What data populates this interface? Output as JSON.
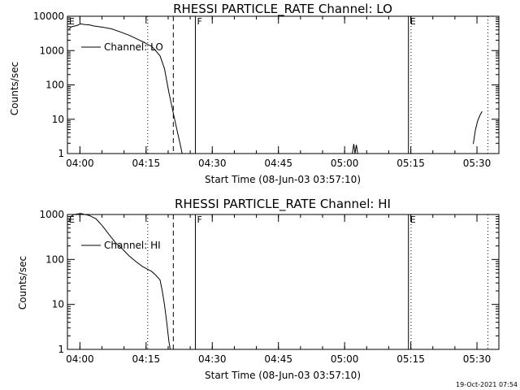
{
  "chart_data": [
    {
      "type": "line",
      "title": "RHESSI PARTICLE_RATE Channel: LO",
      "xlabel": "Start Time (08-Jun-03 03:57:10)",
      "ylabel": "Counts/sec",
      "yscale": "log",
      "xlim_minutes": [
        0,
        97.8
      ],
      "ylim": [
        1,
        10000
      ],
      "x_ticks": [
        {
          "label": "04:00",
          "minute": 2.833
        },
        {
          "label": "04:15",
          "minute": 17.833
        },
        {
          "label": "04:30",
          "minute": 32.833
        },
        {
          "label": "04:45",
          "minute": 47.833
        },
        {
          "label": "05:00",
          "minute": 62.833
        },
        {
          "label": "05:15",
          "minute": 77.833
        },
        {
          "label": "05:30",
          "minute": 92.833
        }
      ],
      "y_ticks": [
        {
          "label": "1",
          "value": 1
        },
        {
          "label": "10",
          "value": 10
        },
        {
          "label": "100",
          "value": 100
        },
        {
          "label": "1000",
          "value": 1000
        },
        {
          "label": "10000",
          "value": 10000
        }
      ],
      "legend": {
        "label": "Channel: LO",
        "placement": "top-left"
      },
      "markers": [
        {
          "minute": 0.0,
          "style": "solid",
          "label": "E"
        },
        {
          "minute": 18.2,
          "style": "dotted",
          "label": ""
        },
        {
          "minute": 24.0,
          "style": "dashed",
          "label": ""
        },
        {
          "minute": 29.0,
          "style": "solid",
          "label": "F"
        },
        {
          "minute": 77.3,
          "style": "solid",
          "label": "E"
        },
        {
          "minute": 77.9,
          "style": "dotted",
          "label": ""
        },
        {
          "minute": 95.3,
          "style": "dotted",
          "label": ""
        }
      ],
      "series": [
        {
          "name": "Channel: LO",
          "segments": [
            [
              [
                0.3,
                4200
              ],
              [
                1.0,
                5000
              ],
              [
                2.0,
                5300
              ],
              [
                3.0,
                6000
              ],
              [
                4.0,
                5700
              ],
              [
                5.0,
                5600
              ],
              [
                6.0,
                5200
              ],
              [
                8.0,
                4800
              ],
              [
                10.0,
                4300
              ],
              [
                12.0,
                3500
              ],
              [
                14.0,
                2800
              ],
              [
                16.0,
                2100
              ],
              [
                17.5,
                1700
              ],
              [
                18.2,
                1500
              ],
              [
                19.0,
                1350
              ],
              [
                20.0,
                1000
              ],
              [
                21.0,
                700
              ],
              [
                22.0,
                300
              ],
              [
                23.0,
                60
              ],
              [
                24.0,
                15
              ],
              [
                24.8,
                5
              ],
              [
                25.5,
                2
              ],
              [
                26.0,
                1
              ]
            ],
            [
              [
                64.6,
                1
              ],
              [
                64.9,
                1.9
              ],
              [
                65.2,
                1
              ],
              [
                65.5,
                1.8
              ],
              [
                65.8,
                1
              ]
            ],
            [
              [
                92.0,
                1.9
              ],
              [
                92.5,
                5
              ],
              [
                93.0,
                9
              ],
              [
                93.5,
                13
              ],
              [
                94.0,
                17
              ]
            ]
          ]
        }
      ]
    },
    {
      "type": "line",
      "title": "RHESSI PARTICLE_RATE Channel: HI",
      "xlabel": "Start Time (08-Jun-03 03:57:10)",
      "ylabel": "Counts/sec",
      "yscale": "log",
      "xlim_minutes": [
        0,
        97.8
      ],
      "ylim": [
        1,
        1000
      ],
      "x_ticks": [
        {
          "label": "04:00",
          "minute": 2.833
        },
        {
          "label": "04:15",
          "minute": 17.833
        },
        {
          "label": "04:30",
          "minute": 32.833
        },
        {
          "label": "04:45",
          "minute": 47.833
        },
        {
          "label": "05:00",
          "minute": 62.833
        },
        {
          "label": "05:15",
          "minute": 77.833
        },
        {
          "label": "05:30",
          "minute": 92.833
        }
      ],
      "y_ticks": [
        {
          "label": "1",
          "value": 1
        },
        {
          "label": "10",
          "value": 10
        },
        {
          "label": "100",
          "value": 100
        },
        {
          "label": "1000",
          "value": 1000
        }
      ],
      "legend": {
        "label": "Channel: HI",
        "placement": "top-left"
      },
      "markers": [
        {
          "minute": 0.0,
          "style": "solid",
          "label": "E"
        },
        {
          "minute": 18.2,
          "style": "dotted",
          "label": ""
        },
        {
          "minute": 24.0,
          "style": "dashed",
          "label": ""
        },
        {
          "minute": 29.0,
          "style": "solid",
          "label": "F"
        },
        {
          "minute": 77.3,
          "style": "solid",
          "label": "E"
        },
        {
          "minute": 77.9,
          "style": "dotted",
          "label": ""
        },
        {
          "minute": 95.3,
          "style": "dotted",
          "label": ""
        }
      ],
      "series": [
        {
          "name": "Channel: HI",
          "segments": [
            [
              [
                0.3,
                700
              ],
              [
                0.8,
                900
              ],
              [
                1.5,
                1000
              ],
              [
                3.0,
                1050
              ],
              [
                5.0,
                950
              ],
              [
                6.5,
                800
              ],
              [
                8.0,
                550
              ],
              [
                9.5,
                350
              ],
              [
                11.0,
                230
              ],
              [
                12.5,
                170
              ],
              [
                14.0,
                120
              ],
              [
                15.5,
                90
              ],
              [
                17.0,
                70
              ],
              [
                18.2,
                60
              ],
              [
                19.0,
                55
              ],
              [
                20.0,
                45
              ],
              [
                21.0,
                35
              ],
              [
                21.5,
                20
              ],
              [
                22.0,
                10
              ],
              [
                22.5,
                4
              ],
              [
                23.0,
                1.5
              ],
              [
                23.3,
                1
              ]
            ]
          ]
        }
      ]
    }
  ],
  "footer": {
    "timestamp": "19-Oct-2021 07:54"
  }
}
